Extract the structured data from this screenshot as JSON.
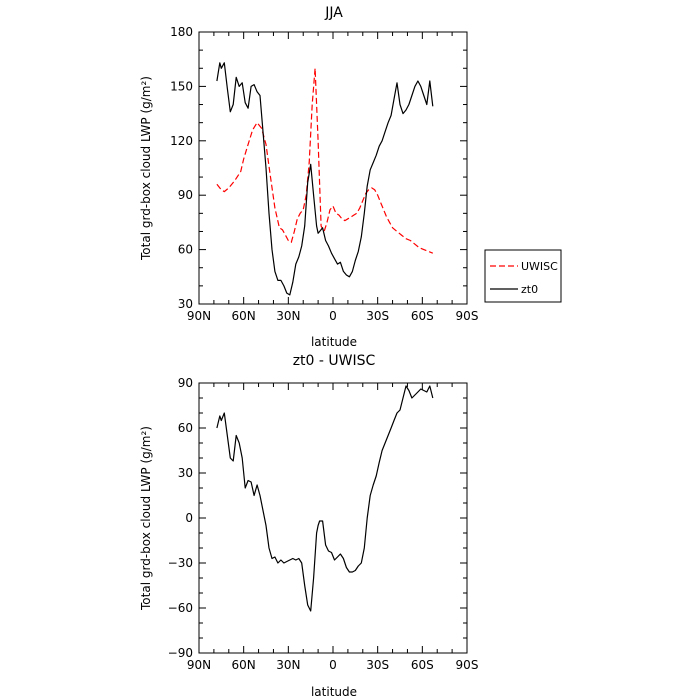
{
  "chart_data": [
    {
      "type": "line",
      "title": "JJA",
      "xlabel": "latitude",
      "ylabel": "Total grd-box cloud LWP (g/m²)",
      "xlim": [
        90,
        -90
      ],
      "ylim": [
        30,
        180
      ],
      "x_ticks": [
        90,
        60,
        30,
        0,
        -30,
        -60,
        -90
      ],
      "x_tick_labels": [
        "90N",
        "60N",
        "30N",
        "0",
        "30S",
        "60S",
        "90S"
      ],
      "y_ticks": [
        30,
        60,
        90,
        120,
        150,
        180
      ],
      "y_tick_labels": [
        "30",
        "60",
        "90",
        "120",
        "150",
        "180"
      ],
      "grid": false,
      "legend_position": "right",
      "series": [
        {
          "name": "UWISC",
          "color": "#ff0000",
          "dash": "dashed",
          "x": [
            78,
            75,
            73,
            70,
            66,
            62,
            60,
            57,
            54,
            51,
            48,
            45,
            42,
            39,
            36,
            34,
            32,
            30,
            28,
            26,
            24,
            22,
            20,
            18,
            16,
            14,
            12,
            10,
            8,
            6,
            4,
            2,
            0,
            -2,
            -4,
            -6,
            -8,
            -10,
            -12,
            -14,
            -16,
            -18,
            -20,
            -22,
            -24,
            -26,
            -28,
            -30,
            -32,
            -34,
            -36,
            -38,
            -40,
            -43,
            -46,
            -49,
            -52,
            -55,
            -58,
            -61,
            -64,
            -67
          ],
          "values": [
            96,
            93,
            92,
            94,
            98,
            103,
            110,
            118,
            126,
            130,
            127,
            118,
            100,
            83,
            72,
            71,
            68,
            65,
            64,
            70,
            77,
            80,
            82,
            90,
            108,
            140,
            160,
            120,
            73,
            70,
            75,
            82,
            84,
            80,
            79,
            77,
            76,
            77,
            78,
            79,
            80,
            83,
            87,
            91,
            93,
            94,
            93,
            90,
            86,
            82,
            78,
            75,
            72,
            70,
            68,
            66,
            65,
            63,
            61,
            60,
            59,
            58
          ]
        },
        {
          "name": "zt0",
          "color": "#000000",
          "dash": "solid",
          "x": [
            78,
            76,
            75,
            73,
            71,
            69,
            67,
            65,
            63,
            61,
            59,
            57,
            55,
            53,
            51,
            49,
            47,
            45,
            43,
            41,
            39,
            37,
            35,
            33,
            31,
            29,
            27,
            25,
            23,
            21,
            19,
            17,
            15,
            13,
            11,
            10,
            9,
            7,
            5,
            3,
            1,
            -1,
            -3,
            -5,
            -7,
            -9,
            -11,
            -13,
            -15,
            -17,
            -19,
            -21,
            -23,
            -25,
            -27,
            -29,
            -31,
            -33,
            -35,
            -37,
            -39,
            -41,
            -43,
            -45,
            -47,
            -49,
            -51,
            -53,
            -55,
            -57,
            -59,
            -61,
            -63,
            -65,
            -67
          ],
          "values": [
            153,
            163,
            160,
            163,
            149,
            136,
            140,
            155,
            150,
            152,
            141,
            138,
            150,
            151,
            147,
            145,
            125,
            105,
            80,
            60,
            48,
            43,
            43,
            40,
            36,
            35,
            42,
            52,
            56,
            62,
            73,
            97,
            107,
            90,
            73,
            69,
            70,
            72,
            65,
            62,
            58,
            55,
            52,
            53,
            48,
            46,
            45,
            48,
            54,
            59,
            67,
            80,
            95,
            104,
            108,
            112,
            117,
            120,
            125,
            130,
            134,
            143,
            152,
            140,
            135,
            137,
            140,
            145,
            150,
            153,
            150,
            145,
            140,
            153,
            139
          ]
        }
      ]
    },
    {
      "type": "line",
      "title": "zt0 - UWISC",
      "xlabel": "latitude",
      "ylabel": "Total grd-box cloud LWP (g/m²)",
      "xlim": [
        90,
        -90
      ],
      "ylim": [
        -90,
        90
      ],
      "x_ticks": [
        90,
        60,
        30,
        0,
        -30,
        -60,
        -90
      ],
      "x_tick_labels": [
        "90N",
        "60N",
        "30N",
        "0",
        "30S",
        "60S",
        "90S"
      ],
      "y_ticks": [
        -90,
        -60,
        -30,
        0,
        30,
        60,
        90
      ],
      "y_tick_labels": [
        "−90",
        "−60",
        "−30",
        "0",
        "30",
        "60",
        "90"
      ],
      "grid": false,
      "series": [
        {
          "color": "#000000",
          "dash": "solid",
          "x": [
            78,
            76,
            75,
            73,
            71,
            69,
            67,
            65,
            63,
            61,
            59,
            57,
            55,
            53,
            51,
            49,
            47,
            45,
            43,
            41,
            39,
            37,
            35,
            33,
            31,
            29,
            27,
            25,
            23,
            21,
            19,
            17,
            15,
            13,
            11,
            10,
            9,
            7,
            5,
            3,
            1,
            -1,
            -3,
            -5,
            -7,
            -9,
            -11,
            -13,
            -15,
            -17,
            -19,
            -21,
            -23,
            -25,
            -27,
            -29,
            -31,
            -33,
            -35,
            -37,
            -39,
            -41,
            -43,
            -45,
            -47,
            -49,
            -51,
            -53,
            -55,
            -57,
            -59,
            -61,
            -63,
            -65,
            -67
          ],
          "values": [
            60,
            68,
            65,
            70,
            55,
            40,
            38,
            55,
            50,
            40,
            20,
            25,
            24,
            15,
            22,
            15,
            5,
            -5,
            -20,
            -27,
            -26,
            -30,
            -28,
            -30,
            -29,
            -28,
            -27,
            -28,
            -27,
            -30,
            -45,
            -58,
            -62,
            -40,
            -10,
            -5,
            -2,
            -2,
            -18,
            -22,
            -23,
            -28,
            -26,
            -24,
            -27,
            -33,
            -36,
            -36,
            -35,
            -32,
            -30,
            -20,
            0,
            15,
            22,
            28,
            37,
            45,
            50,
            55,
            60,
            65,
            70,
            72,
            80,
            88,
            85,
            80,
            82,
            84,
            86,
            85,
            84,
            88,
            80
          ]
        }
      ]
    }
  ],
  "legend": {
    "entries": [
      {
        "label": "UWISC",
        "color": "#ff0000",
        "dash": "dashed"
      },
      {
        "label": "zt0",
        "color": "#000000",
        "dash": "solid"
      }
    ]
  }
}
